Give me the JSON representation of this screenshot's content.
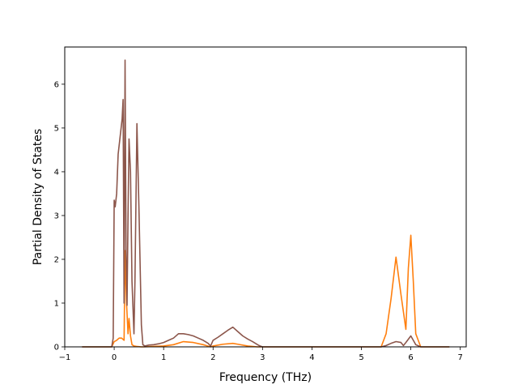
{
  "chart_data": {
    "type": "line",
    "title": "",
    "xlabel": "Frequency (THz)",
    "ylabel": "Partial Density of States",
    "xlim": [
      -1,
      7.12
    ],
    "ylim": [
      0,
      6.85
    ],
    "xticks": [
      -1,
      0,
      1,
      2,
      3,
      4,
      5,
      6,
      7
    ],
    "yticks": [
      0,
      1,
      2,
      3,
      4,
      5,
      6
    ],
    "grid": false,
    "series": [
      {
        "color": "#ff7f0e",
        "x": [
          -0.65,
          -0.05,
          0.0,
          0.05,
          0.1,
          0.15,
          0.2,
          0.22,
          0.25,
          0.28,
          0.3,
          0.33,
          0.36,
          0.4,
          0.45,
          0.55,
          0.6,
          0.8,
          1.0,
          1.2,
          1.4,
          1.6,
          1.8,
          1.95,
          2.0,
          2.2,
          2.4,
          2.5,
          2.7,
          2.9,
          3.0,
          4.0,
          5.0,
          5.4,
          5.5,
          5.6,
          5.7,
          5.8,
          5.9,
          5.95,
          6.0,
          6.05,
          6.1,
          6.2,
          6.78
        ],
        "y": [
          0.0,
          0.0,
          0.12,
          0.15,
          0.2,
          0.2,
          0.15,
          2.2,
          1.0,
          0.3,
          0.65,
          0.25,
          0.05,
          0.02,
          0.01,
          0.0,
          0.0,
          0.01,
          0.02,
          0.05,
          0.12,
          0.1,
          0.05,
          0.0,
          0.02,
          0.06,
          0.08,
          0.06,
          0.02,
          0.0,
          0.0,
          0.0,
          0.0,
          0.0,
          0.3,
          1.1,
          2.05,
          1.2,
          0.4,
          1.8,
          2.55,
          1.5,
          0.3,
          0.0,
          0.0
        ]
      },
      {
        "color": "#8c564b",
        "x": [
          -0.65,
          -0.05,
          -0.02,
          0.0,
          0.02,
          0.05,
          0.08,
          0.12,
          0.16,
          0.18,
          0.2,
          0.22,
          0.24,
          0.26,
          0.28,
          0.3,
          0.33,
          0.36,
          0.4,
          0.42,
          0.46,
          0.5,
          0.55,
          0.58,
          0.62,
          0.7,
          0.8,
          0.9,
          1.0,
          1.1,
          1.2,
          1.3,
          1.4,
          1.5,
          1.6,
          1.7,
          1.8,
          1.9,
          1.95,
          2.0,
          2.1,
          2.2,
          2.3,
          2.4,
          2.5,
          2.6,
          2.7,
          2.8,
          2.9,
          2.95,
          3.0,
          4.0,
          5.0,
          5.4,
          5.5,
          5.6,
          5.7,
          5.8,
          5.85,
          5.9,
          6.0,
          6.05,
          6.1,
          6.2,
          6.78
        ],
        "y": [
          0.0,
          0.0,
          0.2,
          3.35,
          3.2,
          3.5,
          4.4,
          4.8,
          5.2,
          5.65,
          1.0,
          6.55,
          2.2,
          0.95,
          3.0,
          4.75,
          4.0,
          1.5,
          0.3,
          1.5,
          5.1,
          3.2,
          0.5,
          0.05,
          0.02,
          0.04,
          0.05,
          0.07,
          0.1,
          0.15,
          0.2,
          0.3,
          0.3,
          0.28,
          0.25,
          0.2,
          0.15,
          0.08,
          0.02,
          0.15,
          0.22,
          0.3,
          0.38,
          0.45,
          0.35,
          0.25,
          0.18,
          0.12,
          0.05,
          0.02,
          0.0,
          0.0,
          0.0,
          0.0,
          0.03,
          0.08,
          0.12,
          0.1,
          0.03,
          0.1,
          0.25,
          0.15,
          0.05,
          0.0,
          0.0
        ]
      }
    ]
  }
}
